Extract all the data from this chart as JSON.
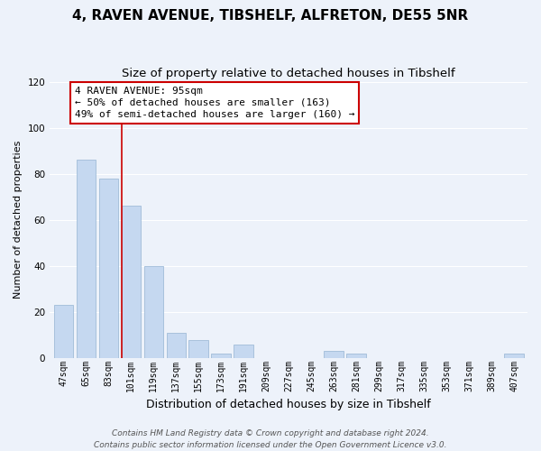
{
  "title": "4, RAVEN AVENUE, TIBSHELF, ALFRETON, DE55 5NR",
  "subtitle": "Size of property relative to detached houses in Tibshelf",
  "xlabel": "Distribution of detached houses by size in Tibshelf",
  "ylabel": "Number of detached properties",
  "categories": [
    "47sqm",
    "65sqm",
    "83sqm",
    "101sqm",
    "119sqm",
    "137sqm",
    "155sqm",
    "173sqm",
    "191sqm",
    "209sqm",
    "227sqm",
    "245sqm",
    "263sqm",
    "281sqm",
    "299sqm",
    "317sqm",
    "335sqm",
    "353sqm",
    "371sqm",
    "389sqm",
    "407sqm"
  ],
  "values": [
    23,
    86,
    78,
    66,
    40,
    11,
    8,
    2,
    6,
    0,
    0,
    0,
    3,
    2,
    0,
    0,
    0,
    0,
    0,
    0,
    2
  ],
  "bar_color": "#c5d8f0",
  "bar_edge_color": "#a0bcd8",
  "highlight_line_color": "#cc0000",
  "highlight_line_bin": 3,
  "annotation_line1": "4 RAVEN AVENUE: 95sqm",
  "annotation_line2": "← 50% of detached houses are smaller (163)",
  "annotation_line3": "49% of semi-detached houses are larger (160) →",
  "annotation_box_color": "#ffffff",
  "annotation_box_edge_color": "#cc0000",
  "ylim": [
    0,
    120
  ],
  "yticks": [
    0,
    20,
    40,
    60,
    80,
    100,
    120
  ],
  "footer_line1": "Contains HM Land Registry data © Crown copyright and database right 2024.",
  "footer_line2": "Contains public sector information licensed under the Open Government Licence v3.0.",
  "background_color": "#edf2fa",
  "grid_color": "#ffffff",
  "title_fontsize": 11,
  "subtitle_fontsize": 9.5,
  "xlabel_fontsize": 9,
  "ylabel_fontsize": 8,
  "tick_fontsize": 7,
  "annotation_fontsize": 8,
  "footer_fontsize": 6.5
}
